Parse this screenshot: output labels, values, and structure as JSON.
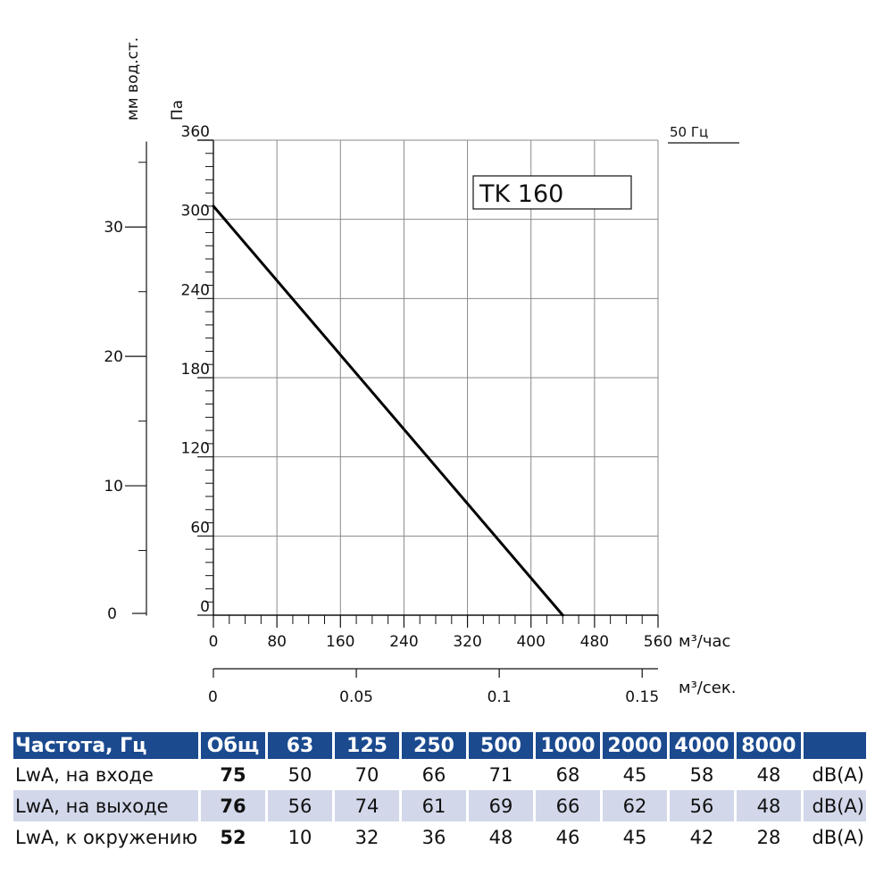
{
  "chart_data": {
    "type": "line",
    "model_label": "TK 160",
    "frequency_label": "50 Гц",
    "y_unit_left": "мм вод.ст.",
    "y_unit_main": "Па",
    "x_unit_main": "м³/час",
    "x_unit_secondary": "м³/сек.",
    "y_ticks": [
      "0",
      "60",
      "120",
      "180",
      "240",
      "300",
      "360"
    ],
    "y_ticks_mm": [
      "0",
      "10",
      "20",
      "30"
    ],
    "x_ticks": [
      "0",
      "80",
      "160",
      "240",
      "320",
      "400",
      "480",
      "560"
    ],
    "x_ticks_sec": [
      "0",
      "0.05",
      "0.1",
      "0.15"
    ],
    "ylim": [
      0,
      360
    ],
    "xlim": [
      0,
      560
    ],
    "grid": true,
    "series": [
      {
        "x": [
          0,
          440
        ],
        "y": [
          310,
          0
        ]
      }
    ]
  },
  "table": {
    "header": [
      "Частота, Гц",
      "Общ",
      "63",
      "125",
      "250",
      "500",
      "1000",
      "2000",
      "4000",
      "8000",
      ""
    ],
    "rows": [
      {
        "label": "LwA, на входе",
        "total": "75",
        "values": [
          "50",
          "70",
          "66",
          "71",
          "68",
          "45",
          "58",
          "48"
        ],
        "unit": "dB(A)"
      },
      {
        "label": "LwA, на выходе",
        "total": "76",
        "values": [
          "56",
          "74",
          "61",
          "69",
          "66",
          "62",
          "56",
          "48"
        ],
        "unit": "dB(A)"
      },
      {
        "label": "LwA, к окружению",
        "total": "52",
        "values": [
          "10",
          "32",
          "36",
          "48",
          "46",
          "45",
          "42",
          "28"
        ],
        "unit": "dB(A)"
      }
    ]
  },
  "colors": {
    "header_bg": "#1b4a8f",
    "row_shade": "#d2d8ea",
    "curve": "#000000",
    "grid": "#8a8a8a"
  }
}
